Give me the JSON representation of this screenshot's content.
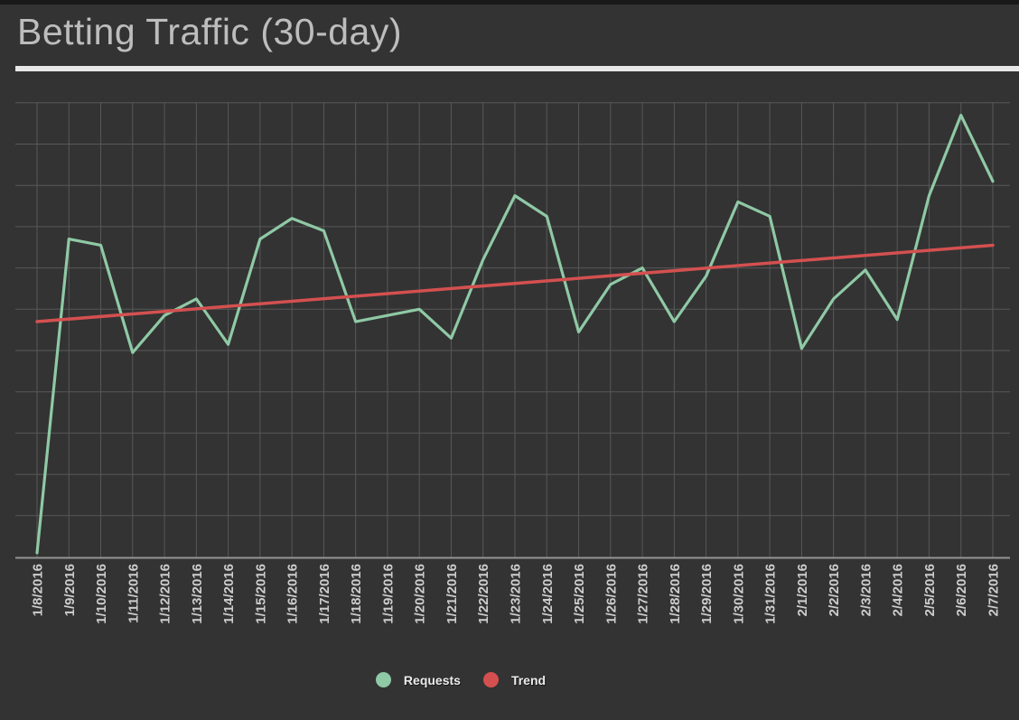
{
  "header": {
    "title": "Betting Traffic (30-day)"
  },
  "legend": {
    "items": [
      {
        "label": "Requests",
        "color": "#8fc9a5"
      },
      {
        "label": "Trend",
        "color": "#d45050"
      }
    ]
  },
  "colors": {
    "background": "#333333",
    "top_strip": "#191919",
    "gridline": "#585858",
    "axis_line": "#949494",
    "title_text": "#bdbdbd",
    "title_underline": "#e8e8e8",
    "axis_label_text": "#cdcdcd",
    "legend_text": "#ebebeb",
    "requests_series": "#8fc9a5",
    "trend_series": "#d45050"
  },
  "chart_data": {
    "type": "line",
    "title": "Betting Traffic (30-day)",
    "x_labels": [
      "1/8/2016",
      "1/9/2016",
      "1/10/2016",
      "1/11/2016",
      "1/12/2016",
      "1/13/2016",
      "1/14/2016",
      "1/15/2016",
      "1/16/2016",
      "1/17/2016",
      "1/18/2016",
      "1/19/2016",
      "1/20/2016",
      "1/21/2016",
      "1/22/2016",
      "1/23/2016",
      "1/24/2016",
      "1/25/2016",
      "1/26/2016",
      "1/27/2016",
      "1/28/2016",
      "1/29/2016",
      "1/30/2016",
      "1/31/2016",
      "2/1/2016",
      "2/2/2016",
      "2/3/2016",
      "2/4/2016",
      "2/5/2016",
      "2/6/2016",
      "2/7/2016"
    ],
    "series": [
      {
        "name": "Requests",
        "color": "#8fc9a5",
        "values": [
          1,
          77,
          75.5,
          49.5,
          58.5,
          62.5,
          51.5,
          77,
          82,
          79,
          57,
          58.5,
          60,
          53,
          72,
          87.5,
          82.5,
          54.5,
          66,
          70,
          57,
          68,
          86,
          82.5,
          50.5,
          62.5,
          69.5,
          57.5,
          87.5,
          107,
          91
        ]
      }
    ],
    "trend": {
      "name": "Trend",
      "color": "#d45050",
      "start_value": 57,
      "end_value": 75.5
    },
    "y_axis": {
      "tick_labels_visible": false,
      "gridline_interval": 10,
      "range": [
        0,
        110
      ],
      "note": "no y tick labels shown; values estimated in gridline units (one gridline = 10)"
    },
    "grid": true,
    "legend_position": "bottom"
  }
}
